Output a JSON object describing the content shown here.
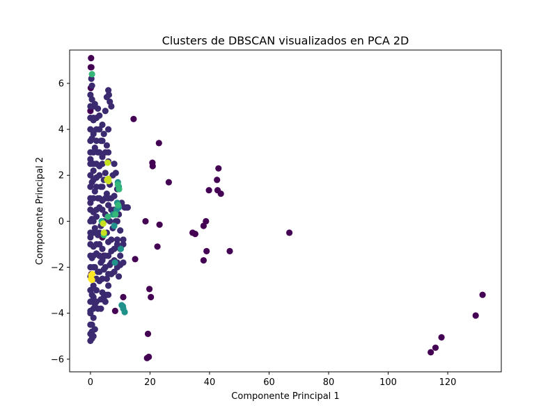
{
  "chart_data": {
    "type": "scatter",
    "title": "Clusters de DBSCAN visualizados en PCA 2D",
    "xlabel": "Componente Principal 1",
    "ylabel": "Componente Principal 2",
    "xlim": [
      -7,
      138
    ],
    "ylim": [
      -6.55,
      7.45
    ],
    "xticks": [
      0,
      20,
      40,
      60,
      80,
      100,
      120
    ],
    "yticks": [
      -6,
      -4,
      -2,
      0,
      2,
      4,
      6
    ],
    "grid": false,
    "legend": "none",
    "colormap": "viridis",
    "cluster_colors": {
      "noise": "#440154",
      "cluster_0": "#3b2a6f",
      "cluster_1": "#21918c",
      "cluster_2": "#35b779",
      "cluster_3": "#c8e020",
      "cluster_4": "#fde725"
    },
    "series": [
      {
        "cluster": "noise",
        "points": [
          [
            0.2,
            7.1
          ],
          [
            0.1,
            6.7
          ],
          [
            0.3,
            6.7
          ],
          [
            0.1,
            5.8
          ],
          [
            0.0,
            4.8
          ],
          [
            14.5,
            4.45
          ],
          [
            23.0,
            3.4
          ],
          [
            20.8,
            2.55
          ],
          [
            20.9,
            2.4
          ],
          [
            26.3,
            1.7
          ],
          [
            43.0,
            2.3
          ],
          [
            42.5,
            1.8
          ],
          [
            39.8,
            1.35
          ],
          [
            42.7,
            1.35
          ],
          [
            43.8,
            1.2
          ],
          [
            18.5,
            0.0
          ],
          [
            38.8,
            0.0
          ],
          [
            23.2,
            -0.15
          ],
          [
            38.0,
            -0.2
          ],
          [
            34.3,
            -0.5
          ],
          [
            35.2,
            -0.55
          ],
          [
            66.8,
            -0.5
          ],
          [
            22.5,
            -1.1
          ],
          [
            39.0,
            -1.3
          ],
          [
            46.8,
            -1.3
          ],
          [
            15.0,
            -1.65
          ],
          [
            38.0,
            -1.7
          ],
          [
            19.8,
            -2.95
          ],
          [
            20.3,
            -3.3
          ],
          [
            11.0,
            -3.3
          ],
          [
            8.3,
            -3.9
          ],
          [
            19.3,
            -4.9
          ],
          [
            19.0,
            -5.95
          ],
          [
            19.6,
            -5.9
          ],
          [
            131.7,
            -3.2
          ],
          [
            129.4,
            -4.1
          ],
          [
            117.9,
            -5.05
          ],
          [
            115.9,
            -5.5
          ],
          [
            114.3,
            -5.7
          ],
          [
            4.0,
            -0.7
          ],
          [
            4.5,
            -1.5
          ],
          [
            0.3,
            -2.3
          ],
          [
            1.5,
            -3.5
          ]
        ]
      },
      {
        "cluster": "cluster_0",
        "points": [
          [
            0.0,
            5.5
          ],
          [
            0.5,
            5.3
          ],
          [
            1.5,
            5.1
          ],
          [
            2.5,
            4.9
          ],
          [
            6.0,
            5.7
          ],
          [
            6.2,
            5.5
          ],
          [
            5.5,
            5.4
          ],
          [
            6.5,
            5.2
          ],
          [
            7.0,
            5.0
          ],
          [
            5.0,
            4.8
          ],
          [
            3.0,
            4.6
          ],
          [
            1.0,
            4.4
          ],
          [
            4.0,
            4.2
          ],
          [
            2.0,
            4.0
          ],
          [
            6.0,
            4.0
          ],
          [
            4.5,
            3.8
          ],
          [
            0.5,
            3.6
          ],
          [
            3.5,
            3.5
          ],
          [
            5.5,
            3.3
          ],
          [
            1.5,
            3.2
          ],
          [
            2.5,
            3.0
          ],
          [
            4.0,
            2.8
          ],
          [
            0.0,
            2.7
          ],
          [
            6.0,
            2.6
          ],
          [
            8.0,
            2.5
          ],
          [
            3.0,
            2.4
          ],
          [
            1.0,
            2.2
          ],
          [
            5.0,
            2.1
          ],
          [
            7.5,
            2.0
          ],
          [
            8.5,
            2.1
          ],
          [
            2.0,
            1.9
          ],
          [
            4.5,
            1.8
          ],
          [
            0.5,
            1.7
          ],
          [
            6.5,
            1.6
          ],
          [
            3.5,
            1.5
          ],
          [
            9.0,
            1.4
          ],
          [
            1.5,
            1.3
          ],
          [
            5.5,
            1.2
          ],
          [
            8.0,
            1.1
          ],
          [
            2.5,
            1.0
          ],
          [
            4.0,
            0.9
          ],
          [
            0.0,
            0.8
          ],
          [
            6.0,
            0.7
          ],
          [
            10.5,
            0.8
          ],
          [
            11.5,
            0.6
          ],
          [
            12.5,
            0.6
          ],
          [
            3.0,
            0.6
          ],
          [
            7.0,
            0.5
          ],
          [
            1.0,
            0.4
          ],
          [
            5.0,
            0.3
          ],
          [
            9.5,
            0.3
          ],
          [
            2.0,
            0.2
          ],
          [
            8.5,
            0.0
          ],
          [
            6.5,
            0.0
          ],
          [
            0.5,
            0.1
          ],
          [
            4.5,
            0.0
          ],
          [
            3.5,
            -0.2
          ],
          [
            1.5,
            -0.3
          ],
          [
            7.5,
            -0.3
          ],
          [
            10.0,
            -0.4
          ],
          [
            5.5,
            -0.5
          ],
          [
            2.5,
            -0.6
          ],
          [
            0.0,
            -0.7
          ],
          [
            6.0,
            -0.9
          ],
          [
            9.0,
            -0.8
          ],
          [
            11.0,
            -0.8
          ],
          [
            3.0,
            -1.0
          ],
          [
            1.0,
            -1.1
          ],
          [
            4.0,
            -1.2
          ],
          [
            7.0,
            -1.3
          ],
          [
            10.0,
            -1.5
          ],
          [
            2.0,
            -1.4
          ],
          [
            5.0,
            -1.5
          ],
          [
            0.5,
            -1.6
          ],
          [
            8.0,
            -1.7
          ],
          [
            11.0,
            -1.8
          ],
          [
            3.5,
            -1.8
          ],
          [
            6.5,
            -1.9
          ],
          [
            1.5,
            -2.0
          ],
          [
            9.0,
            -2.0
          ],
          [
            4.5,
            -2.1
          ],
          [
            2.5,
            -2.2
          ],
          [
            7.0,
            -2.3
          ],
          [
            0.0,
            -2.4
          ],
          [
            5.5,
            -2.5
          ],
          [
            3.0,
            -2.6
          ],
          [
            9.5,
            -2.4
          ],
          [
            1.0,
            -2.8
          ],
          [
            6.0,
            -2.8
          ],
          [
            2.0,
            -3.0
          ],
          [
            4.0,
            -3.1
          ],
          [
            0.5,
            -3.2
          ],
          [
            5.5,
            -3.2
          ],
          [
            3.5,
            -3.4
          ],
          [
            1.5,
            -3.6
          ],
          [
            2.5,
            -3.8
          ],
          [
            0.0,
            -3.9
          ],
          [
            1.0,
            -4.2
          ],
          [
            0.5,
            -4.5
          ],
          [
            1.5,
            -4.7
          ],
          [
            0.0,
            -4.9
          ],
          [
            0.5,
            -5.1
          ],
          [
            1.0,
            -5.0
          ],
          [
            0.0,
            -5.2
          ],
          [
            0.0,
            5.0
          ],
          [
            0.0,
            4.5
          ],
          [
            0.0,
            4.0
          ],
          [
            0.0,
            3.5
          ],
          [
            0.0,
            3.0
          ],
          [
            0.0,
            2.5
          ],
          [
            0.0,
            2.0
          ],
          [
            0.0,
            1.5
          ],
          [
            0.0,
            1.0
          ],
          [
            0.0,
            0.5
          ],
          [
            0.0,
            0.0
          ],
          [
            0.0,
            -0.5
          ],
          [
            0.0,
            -1.0
          ],
          [
            0.0,
            -1.5
          ],
          [
            0.0,
            -2.0
          ],
          [
            0.0,
            -3.0
          ],
          [
            0.0,
            -3.5
          ],
          [
            0.0,
            -4.0
          ],
          [
            0.0,
            -4.5
          ],
          [
            1.0,
            5.0
          ],
          [
            1.0,
            4.5
          ],
          [
            1.0,
            3.8
          ],
          [
            1.0,
            3.0
          ],
          [
            1.0,
            2.5
          ],
          [
            1.0,
            1.8
          ],
          [
            1.0,
            1.0
          ],
          [
            1.0,
            0.0
          ],
          [
            1.0,
            -0.5
          ],
          [
            1.0,
            -1.5
          ],
          [
            1.0,
            -2.0
          ],
          [
            1.0,
            -2.5
          ],
          [
            1.0,
            -3.3
          ],
          [
            1.0,
            -3.8
          ],
          [
            2.0,
            4.5
          ],
          [
            2.0,
            3.5
          ],
          [
            2.0,
            2.5
          ],
          [
            2.0,
            1.5
          ],
          [
            2.0,
            0.5
          ],
          [
            2.0,
            -0.5
          ],
          [
            2.0,
            -1.0
          ],
          [
            2.0,
            -2.5
          ],
          [
            2.0,
            -3.5
          ],
          [
            3.0,
            4.0
          ],
          [
            3.0,
            3.0
          ],
          [
            3.0,
            2.0
          ],
          [
            3.0,
            1.0
          ],
          [
            3.0,
            -0.5
          ],
          [
            3.0,
            -1.5
          ],
          [
            3.0,
            -2.2
          ],
          [
            4.0,
            3.5
          ],
          [
            4.0,
            2.5
          ],
          [
            4.0,
            1.5
          ],
          [
            4.0,
            0.5
          ],
          [
            4.0,
            -1.7
          ],
          [
            4.0,
            -2.5
          ],
          [
            5.0,
            3.0
          ],
          [
            5.0,
            1.0
          ],
          [
            5.0,
            -2.0
          ],
          [
            6.0,
            3.0
          ],
          [
            6.0,
            1.0
          ],
          [
            6.0,
            -1.5
          ],
          [
            6.0,
            -2.3
          ],
          [
            6.0,
            -3.2
          ],
          [
            7.0,
            1.0
          ],
          [
            7.0,
            -0.8
          ],
          [
            7.0,
            -1.8
          ],
          [
            8.0,
            0.5
          ],
          [
            8.0,
            -1.2
          ],
          [
            8.0,
            -2.2
          ],
          [
            9.0,
            0.0
          ],
          [
            9.0,
            -1.0
          ],
          [
            9.0,
            -1.8
          ],
          [
            10.0,
            -1.2
          ],
          [
            10.0,
            -1.9
          ],
          [
            11.0,
            -1.0
          ],
          [
            12.0,
            0.6
          ],
          [
            3.5,
            -3.8
          ],
          [
            5.0,
            -3.5
          ],
          [
            4.5,
            -3.3
          ],
          [
            0.5,
            5.9
          ],
          [
            0.3,
            6.2
          ],
          [
            0.5,
            -4.8
          ]
        ]
      },
      {
        "cluster": "cluster_1",
        "points": [
          [
            9.2,
            1.7
          ],
          [
            9.5,
            1.5
          ],
          [
            9.0,
            0.8
          ],
          [
            9.5,
            0.6
          ],
          [
            8.8,
            0.5
          ],
          [
            7.6,
            0.3
          ],
          [
            8.0,
            -0.2
          ],
          [
            10.2,
            -1.2
          ],
          [
            8.2,
            -1.8
          ],
          [
            10.5,
            -3.65
          ],
          [
            10.9,
            -3.7
          ],
          [
            11.0,
            -3.8
          ],
          [
            11.5,
            -3.95
          ],
          [
            3.8,
            0.0
          ]
        ]
      },
      {
        "cluster": "cluster_2",
        "points": [
          [
            0.5,
            6.4
          ],
          [
            9.2,
            1.6
          ],
          [
            9.6,
            1.4
          ],
          [
            9.3,
            0.7
          ],
          [
            8.4,
            0.3
          ],
          [
            5.9,
            0.2
          ],
          [
            4.0,
            -0.05
          ],
          [
            4.5,
            -0.6
          ]
        ]
      },
      {
        "cluster": "cluster_3",
        "points": [
          [
            5.8,
            2.55
          ],
          [
            6.0,
            1.85
          ],
          [
            5.6,
            1.8
          ],
          [
            6.1,
            1.75
          ],
          [
            4.3,
            -0.1
          ],
          [
            4.5,
            -0.5
          ]
        ]
      },
      {
        "cluster": "cluster_4",
        "points": [
          [
            0.3,
            -2.35
          ],
          [
            0.5,
            -2.55
          ],
          [
            0.2,
            -2.5
          ],
          [
            0.6,
            -2.3
          ]
        ]
      }
    ]
  }
}
